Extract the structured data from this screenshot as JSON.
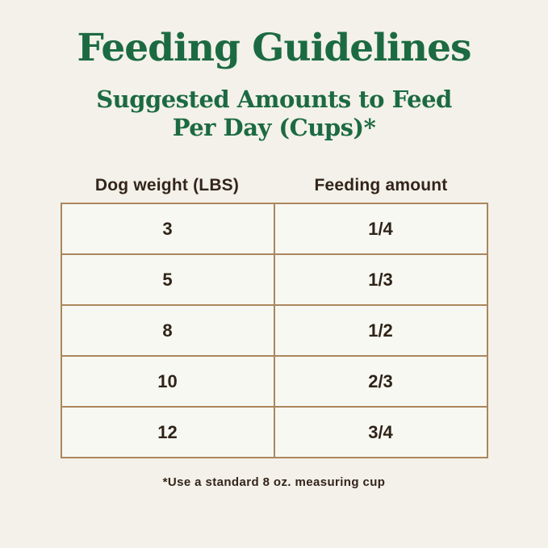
{
  "page": {
    "title": "Feeding Guidelines",
    "subtitle_line1": "Suggested Amounts to Feed",
    "subtitle_line2": "Per Day (Cups)*",
    "footnote": "*Use a standard 8 oz. measuring cup"
  },
  "table": {
    "columns": [
      "Dog weight (LBS)",
      "Feeding amount"
    ],
    "rows": [
      [
        "3",
        "1/4"
      ],
      [
        "5",
        "1/3"
      ],
      [
        "8",
        "1/2"
      ],
      [
        "10",
        "2/3"
      ],
      [
        "12",
        "3/4"
      ]
    ]
  },
  "chart_data": {
    "type": "table",
    "title": "Feeding Guidelines",
    "subtitle": "Suggested Amounts to Feed Per Day (Cups)*",
    "columns": [
      "Dog weight (LBS)",
      "Feeding amount"
    ],
    "rows": [
      [
        "3",
        "1/4"
      ],
      [
        "5",
        "1/3"
      ],
      [
        "8",
        "1/2"
      ],
      [
        "10",
        "2/3"
      ],
      [
        "12",
        "3/4"
      ]
    ],
    "footnote": "*Use a standard 8 oz. measuring cup",
    "layout": "two equal centered columns, tan cell borders, cream background"
  },
  "colors": {
    "page_background": "#f3f1e9",
    "cell_background": "#f7f8f2",
    "title_green": "#1c6a42",
    "text_brown": "#33241a",
    "border_tan": "#ab865c"
  }
}
